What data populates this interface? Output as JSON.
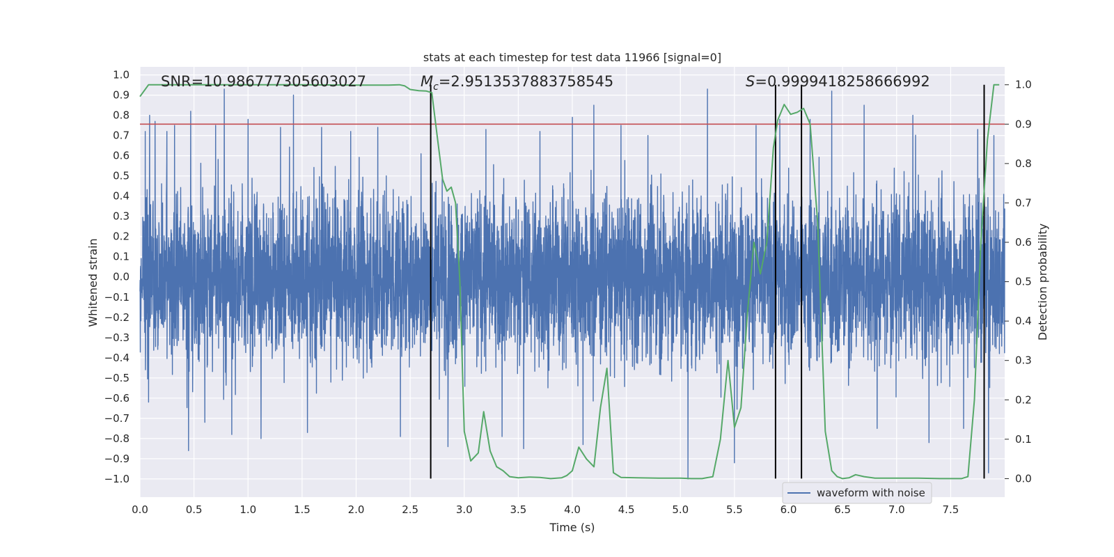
{
  "chart_data": {
    "type": "line",
    "title": "stats at each timestep for test data 11966 [signal=0]",
    "xlabel": "Time (s)",
    "ylabel_left": "Whitened strain",
    "ylabel_right": "Detection probability",
    "xlim": [
      0.0,
      8.0
    ],
    "ylim_left": [
      -1.09,
      1.04
    ],
    "ylim_right": [
      -0.047,
      1.0455
    ],
    "x_ticks": [
      "0.0",
      "0.5",
      "1.0",
      "1.5",
      "2.0",
      "2.5",
      "3.0",
      "3.5",
      "4.0",
      "4.5",
      "5.0",
      "5.5",
      "6.0",
      "6.5",
      "7.0",
      "7.5"
    ],
    "y_ticks_left": [
      "1.0",
      "0.9",
      "0.8",
      "0.7",
      "0.6",
      "0.5",
      "0.4",
      "0.3",
      "0.2",
      "0.1",
      "0.0",
      "-0.1",
      "-0.2",
      "-0.3",
      "-0.4",
      "-0.5",
      "-0.6",
      "-0.7",
      "-0.8",
      "-0.9",
      "-1.0"
    ],
    "y_ticks_left_display": [
      "1.0",
      "0.9",
      "0.8",
      "0.7",
      "0.6",
      "0.5",
      "0.4",
      "0.3",
      "0.2",
      "0.1",
      "0.0",
      "−0.1",
      "−0.2",
      "−0.3",
      "−0.4",
      "−0.5",
      "−0.6",
      "−0.7",
      "−0.8",
      "−0.9",
      "−1.0"
    ],
    "y_ticks_right": [
      "0.0",
      "0.1",
      "0.2",
      "0.3",
      "0.4",
      "0.5",
      "0.6",
      "0.7",
      "0.8",
      "0.9",
      "1.0"
    ],
    "annotations": {
      "snr": "SNR=10.986777305603027",
      "mc_prefix": "M",
      "mc_sub": "c",
      "mc_value": "=2.9513537883758545",
      "s_prefix": "S",
      "s_value": "=0.9999418258666992"
    },
    "threshold": {
      "value": 0.9,
      "axis": "right",
      "color": "#c44e52"
    },
    "vertical_lines": [
      2.69,
      5.88,
      6.12,
      7.81
    ],
    "series": [
      {
        "name": "waveform with noise",
        "axis": "left",
        "color": "#4c72b0",
        "noise_std": 0.25,
        "peaks": [
          {
            "t": 0.05,
            "v": 0.72
          },
          {
            "t": 0.08,
            "v": -0.62
          },
          {
            "t": 0.09,
            "v": 0.8
          },
          {
            "t": 0.14,
            "v": 0.77
          },
          {
            "t": 0.25,
            "v": 0.72
          },
          {
            "t": 0.32,
            "v": 0.75
          },
          {
            "t": 0.45,
            "v": -0.86
          },
          {
            "t": 0.47,
            "v": 0.82
          },
          {
            "t": 0.6,
            "v": -0.72
          },
          {
            "t": 0.7,
            "v": 0.75
          },
          {
            "t": 0.78,
            "v": 0.93
          },
          {
            "t": 0.85,
            "v": -0.78
          },
          {
            "t": 1.0,
            "v": 0.78
          },
          {
            "t": 1.12,
            "v": 0.83
          },
          {
            "t": 1.12,
            "v": -0.8
          },
          {
            "t": 1.3,
            "v": 0.74
          },
          {
            "t": 1.42,
            "v": 0.9
          },
          {
            "t": 1.55,
            "v": -0.77
          },
          {
            "t": 1.68,
            "v": 0.74
          },
          {
            "t": 1.95,
            "v": 0.72
          },
          {
            "t": 2.2,
            "v": 0.74
          },
          {
            "t": 2.41,
            "v": -0.79
          },
          {
            "t": 2.6,
            "v": 0.61
          },
          {
            "t": 2.85,
            "v": -0.84
          },
          {
            "t": 3.2,
            "v": 0.73
          },
          {
            "t": 3.35,
            "v": -0.79
          },
          {
            "t": 3.55,
            "v": -0.85
          },
          {
            "t": 3.7,
            "v": 0.72
          },
          {
            "t": 4.0,
            "v": 0.79
          },
          {
            "t": 4.2,
            "v": 0.85
          },
          {
            "t": 4.1,
            "v": -0.83
          },
          {
            "t": 4.45,
            "v": 0.75
          },
          {
            "t": 4.7,
            "v": 0.7
          },
          {
            "t": 5.07,
            "v": -1.0
          },
          {
            "t": 5.25,
            "v": 0.93
          },
          {
            "t": 5.5,
            "v": -0.92
          },
          {
            "t": 5.7,
            "v": 0.75
          },
          {
            "t": 5.92,
            "v": 0.78
          },
          {
            "t": 6.2,
            "v": 0.78
          },
          {
            "t": 6.4,
            "v": 0.92
          },
          {
            "t": 6.7,
            "v": 0.85
          },
          {
            "t": 6.82,
            "v": -0.75
          },
          {
            "t": 7.15,
            "v": 0.8
          },
          {
            "t": 7.3,
            "v": -0.82
          },
          {
            "t": 7.62,
            "v": -0.75
          },
          {
            "t": 7.75,
            "v": 0.73
          },
          {
            "t": 7.85,
            "v": -0.97
          },
          {
            "t": 7.9,
            "v": 0.7
          }
        ]
      },
      {
        "name": "detection probability",
        "axis": "right",
        "color": "#55a868",
        "x": [
          0.0,
          0.08,
          0.2,
          0.4,
          0.7,
          1.0,
          1.5,
          2.0,
          2.2,
          2.3,
          2.4,
          2.45,
          2.5,
          2.58,
          2.65,
          2.7,
          2.75,
          2.8,
          2.84,
          2.88,
          2.92,
          2.96,
          3.0,
          3.06,
          3.13,
          3.18,
          3.24,
          3.3,
          3.36,
          3.42,
          3.5,
          3.6,
          3.7,
          3.8,
          3.9,
          3.95,
          4.0,
          4.06,
          4.13,
          4.2,
          4.26,
          4.32,
          4.38,
          4.45,
          4.6,
          4.8,
          5.0,
          5.1,
          5.2,
          5.3,
          5.37,
          5.44,
          5.5,
          5.56,
          5.62,
          5.68,
          5.74,
          5.8,
          5.86,
          5.9,
          5.96,
          6.02,
          6.08,
          6.14,
          6.2,
          6.27,
          6.34,
          6.4,
          6.45,
          6.5,
          6.56,
          6.62,
          6.7,
          6.8,
          7.0,
          7.2,
          7.4,
          7.6,
          7.66,
          7.72,
          7.78,
          7.84,
          7.9,
          7.95
        ],
        "y": [
          0.97,
          1.0,
          1.0,
          1.0,
          1.0,
          1.0,
          1.0,
          0.999,
          0.999,
          0.999,
          1.0,
          0.997,
          0.988,
          0.985,
          0.984,
          0.98,
          0.87,
          0.76,
          0.73,
          0.74,
          0.7,
          0.5,
          0.12,
          0.045,
          0.065,
          0.17,
          0.07,
          0.03,
          0.02,
          0.005,
          0.002,
          0.004,
          0.003,
          0.0,
          0.002,
          0.008,
          0.02,
          0.08,
          0.05,
          0.03,
          0.18,
          0.28,
          0.015,
          0.003,
          0.002,
          0.001,
          0.001,
          0.0,
          0.0,
          0.005,
          0.1,
          0.3,
          0.13,
          0.18,
          0.42,
          0.6,
          0.52,
          0.6,
          0.84,
          0.91,
          0.95,
          0.925,
          0.93,
          0.94,
          0.9,
          0.65,
          0.12,
          0.02,
          0.005,
          0.0,
          0.002,
          0.01,
          0.005,
          0.001,
          0.001,
          0.001,
          0.0,
          0.0,
          0.005,
          0.2,
          0.6,
          0.86,
          1.0,
          1.0
        ]
      }
    ],
    "legend": {
      "placement": "bottom-right",
      "label": "waveform with noise"
    }
  }
}
